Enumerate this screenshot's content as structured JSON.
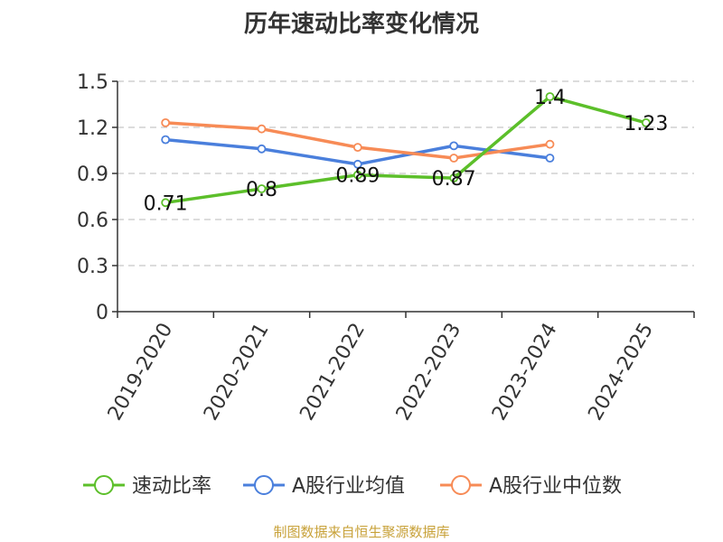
{
  "chart_data": {
    "type": "line",
    "title": "历年速动比率变化情况",
    "categories": [
      "2019-2020",
      "2020-2021",
      "2021-2022",
      "2022-2023",
      "2023-2024",
      "2024-2025"
    ],
    "ylim": [
      0,
      1.5
    ],
    "yticks": [
      "0",
      "0.3",
      "0.6",
      "0.9",
      "1.2",
      "1.5"
    ],
    "grid": true,
    "legend_position": "bottom",
    "series": [
      {
        "name": "速动比率",
        "color": "#5cbf2a",
        "values": [
          0.71,
          0.8,
          0.89,
          0.87,
          1.4,
          1.23
        ],
        "labels": [
          "0.71",
          "0.8",
          "0.89",
          "0.87",
          "1.4",
          "1.23"
        ]
      },
      {
        "name": "A股行业均值",
        "color": "#4a7fdc",
        "values": [
          1.12,
          1.06,
          0.96,
          1.08,
          1.0,
          null
        ]
      },
      {
        "name": "A股行业中位数",
        "color": "#f78b56",
        "values": [
          1.23,
          1.19,
          1.07,
          1.0,
          1.09,
          null
        ]
      }
    ]
  },
  "source_note": "制图数据来自恒生聚源数据库"
}
